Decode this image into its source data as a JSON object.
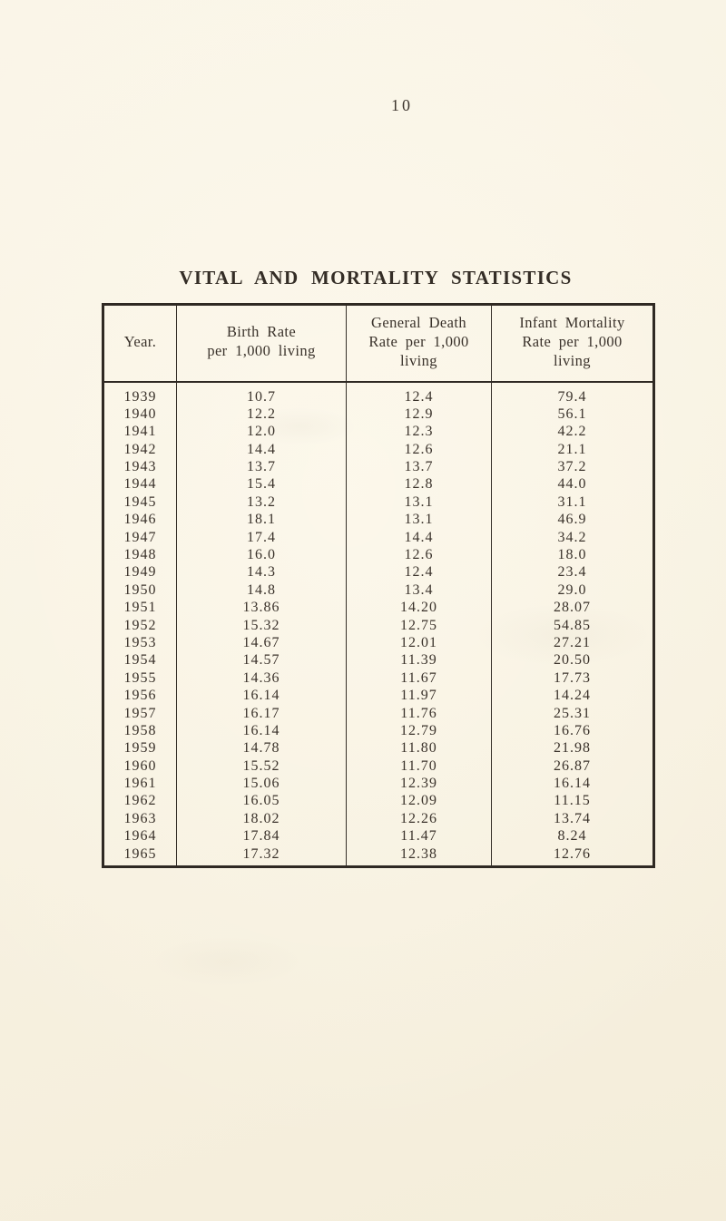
{
  "page": {
    "number": "10",
    "title": "VITAL AND MORTALITY STATISTICS"
  },
  "table": {
    "columns": [
      {
        "lines": [
          "Year."
        ]
      },
      {
        "lines": [
          "Birth Rate",
          "per 1,000 living"
        ]
      },
      {
        "lines": [
          "General Death",
          "Rate per 1,000",
          "living"
        ]
      },
      {
        "lines": [
          "Infant Mortality",
          "Rate per 1,000",
          "living"
        ]
      }
    ],
    "rows": [
      [
        "1939",
        "10.7",
        "12.4",
        "79.4"
      ],
      [
        "1940",
        "12.2",
        "12.9",
        "56.1"
      ],
      [
        "1941",
        "12.0",
        "12.3",
        "42.2"
      ],
      [
        "1942",
        "14.4",
        "12.6",
        "21.1"
      ],
      [
        "1943",
        "13.7",
        "13.7",
        "37.2"
      ],
      [
        "1944",
        "15.4",
        "12.8",
        "44.0"
      ],
      [
        "1945",
        "13.2",
        "13.1",
        "31.1"
      ],
      [
        "1946",
        "18.1",
        "13.1",
        "46.9"
      ],
      [
        "1947",
        "17.4",
        "14.4",
        "34.2"
      ],
      [
        "1948",
        "16.0",
        "12.6",
        "18.0"
      ],
      [
        "1949",
        "14.3",
        "12.4",
        "23.4"
      ],
      [
        "1950",
        "14.8",
        "13.4",
        "29.0"
      ],
      [
        "1951",
        "13.86",
        "14.20",
        "28.07"
      ],
      [
        "1952",
        "15.32",
        "12.75",
        "54.85"
      ],
      [
        "1953",
        "14.67",
        "12.01",
        "27.21"
      ],
      [
        "1954",
        "14.57",
        "11.39",
        "20.50"
      ],
      [
        "1955",
        "14.36",
        "11.67",
        "17.73"
      ],
      [
        "1956",
        "16.14",
        "11.97",
        "14.24"
      ],
      [
        "1957",
        "16.17",
        "11.76",
        "25.31"
      ],
      [
        "1958",
        "16.14",
        "12.79",
        "16.76"
      ],
      [
        "1959",
        "14.78",
        "11.80",
        "21.98"
      ],
      [
        "1960",
        "15.52",
        "11.70",
        "26.87"
      ],
      [
        "1961",
        "15.06",
        "12.39",
        "16.14"
      ],
      [
        "1962",
        "16.05",
        "12.09",
        "11.15"
      ],
      [
        "1963",
        "18.02",
        "12.26",
        "13.74"
      ],
      [
        "1964",
        "17.84",
        "11.47",
        "8.24"
      ],
      [
        "1965",
        "17.32",
        "12.38",
        "12.76"
      ]
    ]
  },
  "colors": {
    "paper": "#f8f2e2",
    "ink": "#3a322b",
    "border": "#2f2923"
  }
}
